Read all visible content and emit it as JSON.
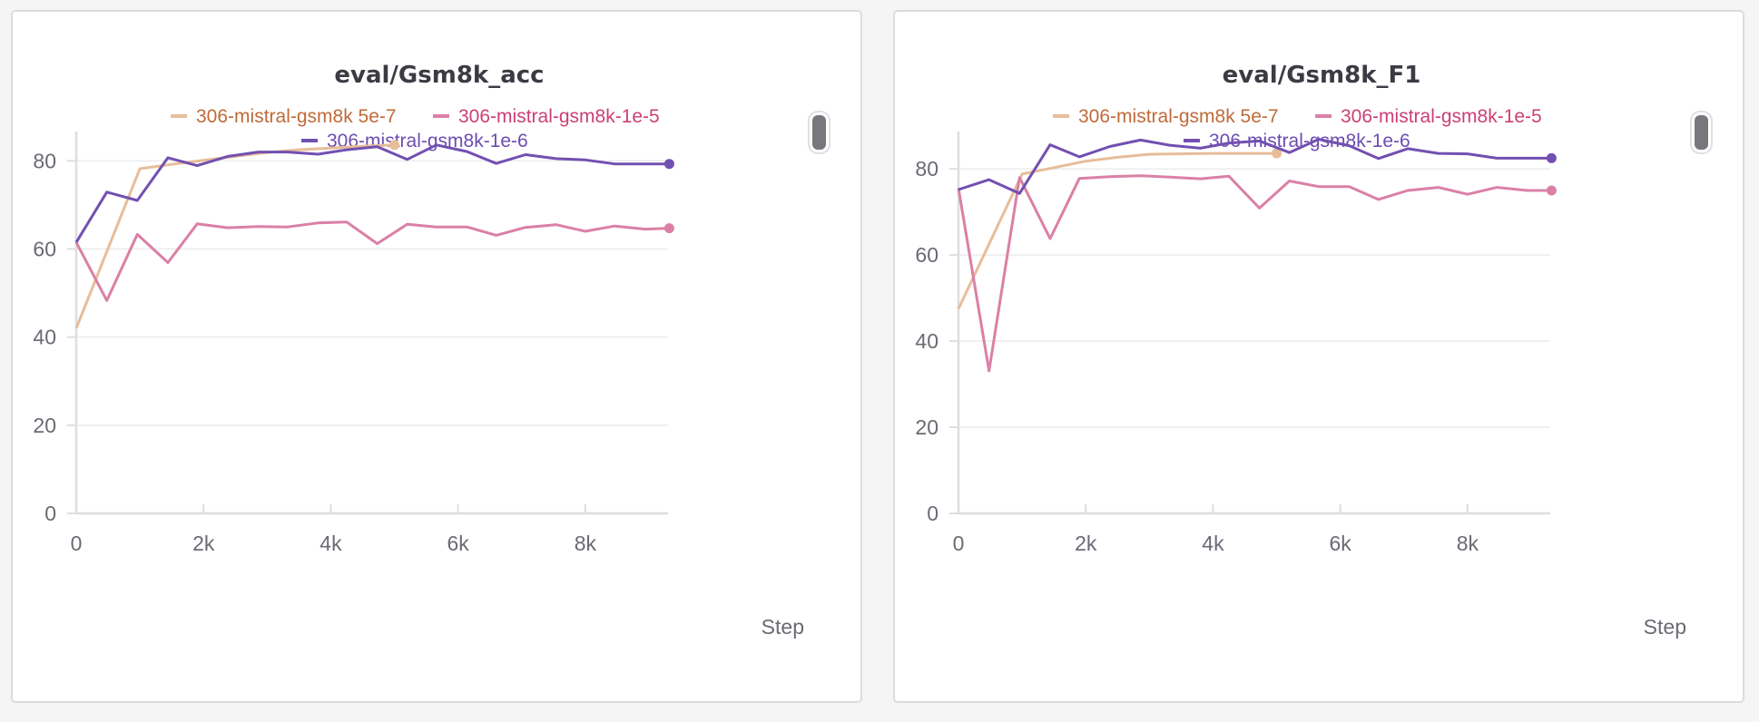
{
  "chart_data": [
    {
      "type": "line",
      "title": "eval/Gsm8k_acc",
      "xlabel": "Step",
      "ylabel": "",
      "xlim": [
        0,
        9300
      ],
      "ylim": [
        0,
        85
      ],
      "xticks": [
        0,
        2000,
        4000,
        6000,
        8000
      ],
      "xtick_labels": [
        "0",
        "2k",
        "4k",
        "6k",
        "8k"
      ],
      "yticks": [
        0,
        20,
        40,
        60,
        80
      ],
      "ytick_labels": [
        "0",
        "20",
        "40",
        "60",
        "80"
      ],
      "grid": true,
      "legend": "top-center",
      "series": [
        {
          "name": "306-mistral-gsm8k 5e-7",
          "color": "#e8bd99",
          "text_color": "#c06a38",
          "x": [
            0,
            1000,
            1500,
            2000,
            2500,
            3000,
            3500,
            4000,
            4500,
            5000
          ],
          "y": [
            42,
            78.2,
            79.2,
            80.1,
            81.0,
            81.9,
            82.5,
            82.9,
            83.3,
            83.6
          ]
        },
        {
          "name": "306-mistral-gsm8k-1e-5",
          "color": "#da80a6",
          "text_color": "#cc3f74",
          "x": [
            0,
            480,
            960,
            1440,
            1900,
            2380,
            2860,
            3320,
            3800,
            4250,
            4730,
            5200,
            5660,
            6140,
            6600,
            7060,
            7540,
            8000,
            8460,
            8940,
            9320
          ],
          "y": [
            61.5,
            48.3,
            63.3,
            56.9,
            65.7,
            64.8,
            65.1,
            65.0,
            65.9,
            66.1,
            61.2,
            65.6,
            65.0,
            65.0,
            63.1,
            64.9,
            65.5,
            64.0,
            65.2,
            64.5,
            64.7
          ]
        },
        {
          "name": "306-mistral-gsm8k-1e-6",
          "color": "#7250b1",
          "text_color": "#6d4cb0",
          "x": [
            0,
            480,
            960,
            1440,
            1900,
            2380,
            2860,
            3320,
            3800,
            4250,
            4730,
            5200,
            5660,
            6140,
            6600,
            7060,
            7540,
            8000,
            8460,
            8940,
            9320
          ],
          "y": [
            61.5,
            72.9,
            71.0,
            80.7,
            78.9,
            81.0,
            82.0,
            82.0,
            81.5,
            82.5,
            83.2,
            80.3,
            83.6,
            82.1,
            79.4,
            81.4,
            80.5,
            80.2,
            79.3,
            79.3,
            79.3
          ]
        }
      ]
    },
    {
      "type": "line",
      "title": "eval/Gsm8k_F1",
      "xlabel": "Step",
      "ylabel": "",
      "xlim": [
        0,
        9300
      ],
      "ylim": [
        0,
        87
      ],
      "xticks": [
        0,
        2000,
        4000,
        6000,
        8000
      ],
      "xtick_labels": [
        "0",
        "2k",
        "4k",
        "6k",
        "8k"
      ],
      "yticks": [
        0,
        20,
        40,
        60,
        80
      ],
      "ytick_labels": [
        "0",
        "20",
        "40",
        "60",
        "80"
      ],
      "grid": true,
      "legend": "top-center",
      "series": [
        {
          "name": "306-mistral-gsm8k 5e-7",
          "color": "#e8bd99",
          "text_color": "#c06a38",
          "x": [
            0,
            1000,
            1500,
            2000,
            2500,
            3000,
            3500,
            4000,
            4500,
            5000
          ],
          "y": [
            47.5,
            78.8,
            80.3,
            81.8,
            82.7,
            83.4,
            83.5,
            83.6,
            83.6,
            83.6
          ]
        },
        {
          "name": "306-mistral-gsm8k-1e-5",
          "color": "#da80a6",
          "text_color": "#cc3f74",
          "x": [
            0,
            480,
            960,
            1440,
            1900,
            2380,
            2860,
            3320,
            3800,
            4250,
            4730,
            5200,
            5660,
            6140,
            6600,
            7060,
            7540,
            8000,
            8460,
            8940,
            9320
          ],
          "y": [
            75.5,
            33.1,
            78.0,
            63.8,
            77.8,
            78.2,
            78.4,
            78.1,
            77.7,
            78.3,
            70.9,
            77.2,
            75.9,
            75.9,
            72.9,
            75.0,
            75.7,
            74.1,
            75.7,
            75.0,
            75.0
          ]
        },
        {
          "name": "306-mistral-gsm8k-1e-6",
          "color": "#7250b1",
          "text_color": "#6d4cb0",
          "x": [
            0,
            480,
            960,
            1440,
            1900,
            2380,
            2860,
            3320,
            3800,
            4250,
            4730,
            5200,
            5660,
            6140,
            6600,
            7060,
            7540,
            8000,
            8460,
            8940,
            9320
          ],
          "y": [
            75.2,
            77.5,
            74.3,
            85.6,
            82.8,
            85.2,
            86.7,
            85.5,
            84.8,
            86.0,
            86.5,
            83.8,
            86.9,
            85.4,
            82.4,
            84.7,
            83.6,
            83.5,
            82.5,
            82.5,
            82.5
          ]
        }
      ]
    }
  ]
}
